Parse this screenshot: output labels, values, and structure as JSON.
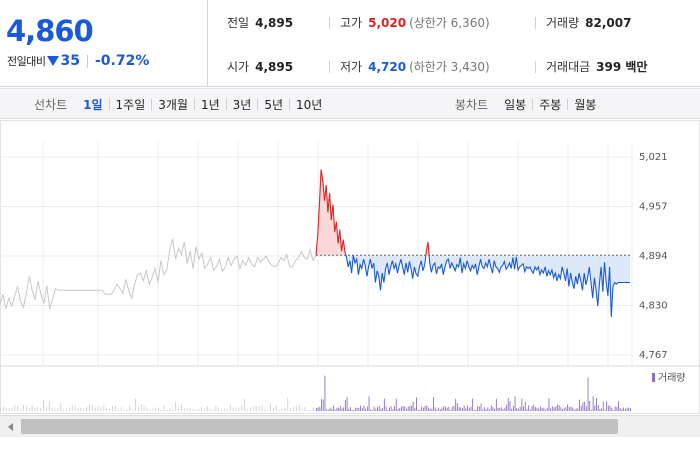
{
  "quote": {
    "price": "4,860",
    "change_label": "전일대비",
    "change_amount": "35",
    "change_percent": "-0.72%",
    "direction_icon": "down-triangle-icon",
    "prev_close_label": "전일",
    "prev_close": "4,895",
    "open_label": "시가",
    "open": "4,895",
    "high_label": "고가",
    "high": "5,020",
    "upper_limit": "(상한가 6,360)",
    "low_label": "저가",
    "low": "4,720",
    "lower_limit": "(하한가 3,430)",
    "volume_label": "거래량",
    "volume": "82,007",
    "value_label": "거래대금",
    "value": "399 백만",
    "colors": {
      "up": "#e02222",
      "down": "#1a5ad8"
    }
  },
  "period_bar": {
    "line_title": "선차트",
    "line_items": [
      "1일",
      "1주일",
      "3개월",
      "1년",
      "3년",
      "5년",
      "10년"
    ],
    "line_active": "1일",
    "candle_title": "봉차트",
    "candle_items": [
      "일봉",
      "주봉",
      "월봉"
    ]
  },
  "chart": {
    "volume_legend": "거래량"
  },
  "chart_data": {
    "type": "line",
    "ylim": [
      4767,
      5021
    ],
    "yticks": [
      "5,021",
      "4,957",
      "4,894",
      "4,830",
      "4,767"
    ],
    "baseline": 4895,
    "grid": true,
    "series": [
      {
        "name": "previous-days",
        "color": "#c8c8c8",
        "values": [
          4832,
          4845,
          4826,
          4840,
          4830,
          4842,
          4855,
          4836,
          4828,
          4846,
          4868,
          4850,
          4838,
          4862,
          4844,
          4834,
          4856,
          4826,
          4840,
          4852,
          4850,
          4850,
          4850,
          4850,
          4850,
          4850,
          4850,
          4850,
          4850,
          4850,
          4850,
          4850,
          4850,
          4850,
          4850,
          4850,
          4845,
          4845,
          4845,
          4850,
          4858,
          4852,
          4846,
          4864,
          4850,
          4840,
          4858,
          4870,
          4872,
          4862,
          4876,
          4858,
          4866,
          4878,
          4860,
          4888,
          4870,
          4876,
          4902,
          4916,
          4890,
          4904,
          4896,
          4912,
          4884,
          4900,
          4878,
          4906,
          4890,
          4898,
          4878,
          4884,
          4892,
          4876,
          4880,
          4890,
          4874,
          4880,
          4892,
          4882,
          4890,
          4894,
          4878,
          4888,
          4882,
          4892,
          4884,
          4880,
          4892,
          4886,
          4890,
          4894,
          4886,
          4882,
          4880,
          4884,
          4892,
          4888,
          4896,
          4880,
          4880,
          4888,
          4892,
          4900,
          4892,
          4890,
          4902,
          4888,
          4895
        ]
      },
      {
        "name": "today",
        "color_up": "#e02222",
        "color_down": "#1a5ad8",
        "values": [
          4895,
          4920,
          4960,
          5005,
          4990,
          4965,
          4985,
          4950,
          4975,
          4940,
          4960,
          4925,
          4938,
          4910,
          4928,
          4900,
          4915,
          4900,
          4892,
          4880,
          4888,
          4872,
          4895,
          4885,
          4890,
          4870,
          4883,
          4878,
          4890,
          4882,
          4868,
          4880,
          4890,
          4878,
          4885,
          4860,
          4875,
          4868,
          4850,
          4872,
          4860,
          4878,
          4885,
          4870,
          4880,
          4888,
          4878,
          4884,
          4872,
          4882,
          4890,
          4880,
          4870,
          4885,
          4873,
          4887,
          4878,
          4865,
          4880,
          4871,
          4868,
          4880,
          4888,
          4875,
          4882,
          4900,
          4912,
          4885,
          4873,
          4882,
          4885,
          4871,
          4880,
          4878,
          4884,
          4870,
          4880,
          4888,
          4890,
          4878,
          4885,
          4880,
          4875,
          4883,
          4880,
          4892,
          4872,
          4884,
          4878,
          4888,
          4880,
          4875,
          4882,
          4878,
          4884,
          4870,
          4880,
          4890,
          4880,
          4878,
          4885,
          4880,
          4890,
          4880,
          4872,
          4888,
          4880,
          4878,
          4873,
          4880,
          4882,
          4887,
          4877,
          4880,
          4885,
          4878,
          4892,
          4877,
          4893,
          4876,
          4880,
          4882,
          4884,
          4874,
          4880,
          4878,
          4880,
          4875,
          4872,
          4880,
          4876,
          4880,
          4870,
          4876,
          4872,
          4880,
          4868,
          4875,
          4870,
          4876,
          4866,
          4872,
          4862,
          4870,
          4865,
          4880,
          4872,
          4862,
          4878,
          4855,
          4872,
          4860,
          4852,
          4868,
          4858,
          4872,
          4862,
          4850,
          4872,
          4857,
          4866,
          4880,
          4860,
          4840,
          4866,
          4850,
          4830,
          4858,
          4880,
          4848,
          4886,
          4860,
          4843,
          4880,
          4816,
          4855,
          4860,
          4858,
          4860,
          4860,
          4860,
          4860,
          4860,
          4860,
          4860,
          4860
        ]
      }
    ],
    "volume": {
      "previous_max_bar": 0.2,
      "today_spikes": [
        0.82,
        0.78
      ]
    }
  }
}
